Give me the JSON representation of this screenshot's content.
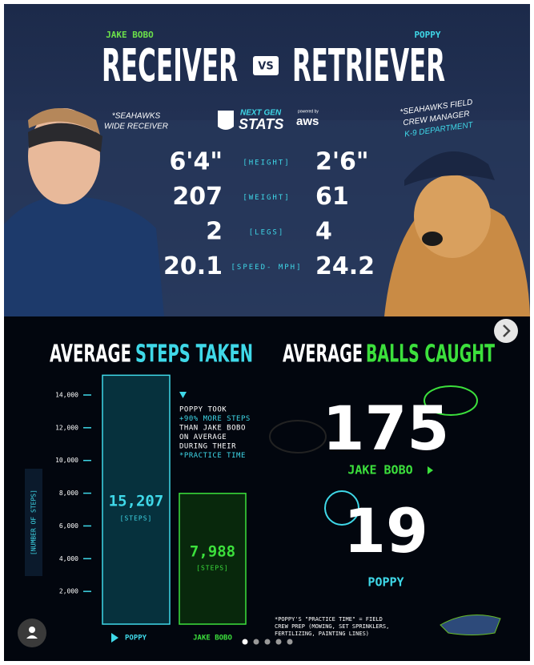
{
  "header": {
    "left_name": "JAKE BOBO",
    "right_name": "POPPY",
    "left_title": "RECEIVER",
    "vs": "VS",
    "right_title": "RETRIEVER",
    "left_note": [
      "*SEAHAWKS",
      "WIDE RECEIVER"
    ],
    "right_note": [
      "*SEAHAWKS FIELD",
      "CREW MANAGER",
      "K-9 DEPARTMENT"
    ],
    "logo": {
      "line1": "NEXT GEN",
      "line2": "STATS",
      "powered": "powered by",
      "sponsor": "aws"
    }
  },
  "stats": [
    {
      "label": "[HEIGHT]",
      "left": "6'4\"",
      "right": "2'6\""
    },
    {
      "label": "[WEIGHT]",
      "left": 207,
      "right": 61
    },
    {
      "label": "[LEGS]",
      "left": 2,
      "right": 4
    },
    {
      "label": "[SPEED- MPH]",
      "left": 20.1,
      "right": 24.2
    }
  ],
  "steps_chart": {
    "type": "bar",
    "title": "AVERAGE",
    "title_highlight": "STEPS TAKEN",
    "y_label": "[NUMBER OF STEPS]",
    "categories": [
      "POPPY",
      "JAKE BOBO"
    ],
    "values": [
      15207,
      7988
    ],
    "value_labels": [
      "15,207",
      "7,988"
    ],
    "unit_label": "[STEPS]",
    "colors": [
      "#3fd8e8",
      "#3ce03c"
    ],
    "ylim": [
      0,
      14000
    ],
    "yticks": [
      {
        "value": 2000,
        "label": "2,000"
      },
      {
        "value": 4000,
        "label": "4,000"
      },
      {
        "value": 6000,
        "label": "6,000"
      },
      {
        "value": 8000,
        "label": "8,000"
      },
      {
        "value": 10000,
        "label": "10,000"
      },
      {
        "value": 12000,
        "label": "12,000"
      },
      {
        "value": 14000,
        "label": "14,000"
      }
    ],
    "note": [
      "POPPY TOOK",
      "+90% MORE STEPS",
      "THAN JAKE BOBO",
      "ON AVERAGE",
      "DURING THEIR",
      "*PRACTICE TIME"
    ]
  },
  "balls": {
    "title": "AVERAGE",
    "title_highlight": "BALLS CAUGHT",
    "items": [
      {
        "value": 175,
        "name": "JAKE BOBO"
      },
      {
        "value": 19,
        "name": "POPPY"
      }
    ]
  },
  "footnote": [
    "*POPPY'S \"PRACTICE TIME\" = FIELD",
    "CREW PREP (MOWING, SET SPRINKLERS,",
    "FERTILIZING, PAINTING LINES)"
  ]
}
